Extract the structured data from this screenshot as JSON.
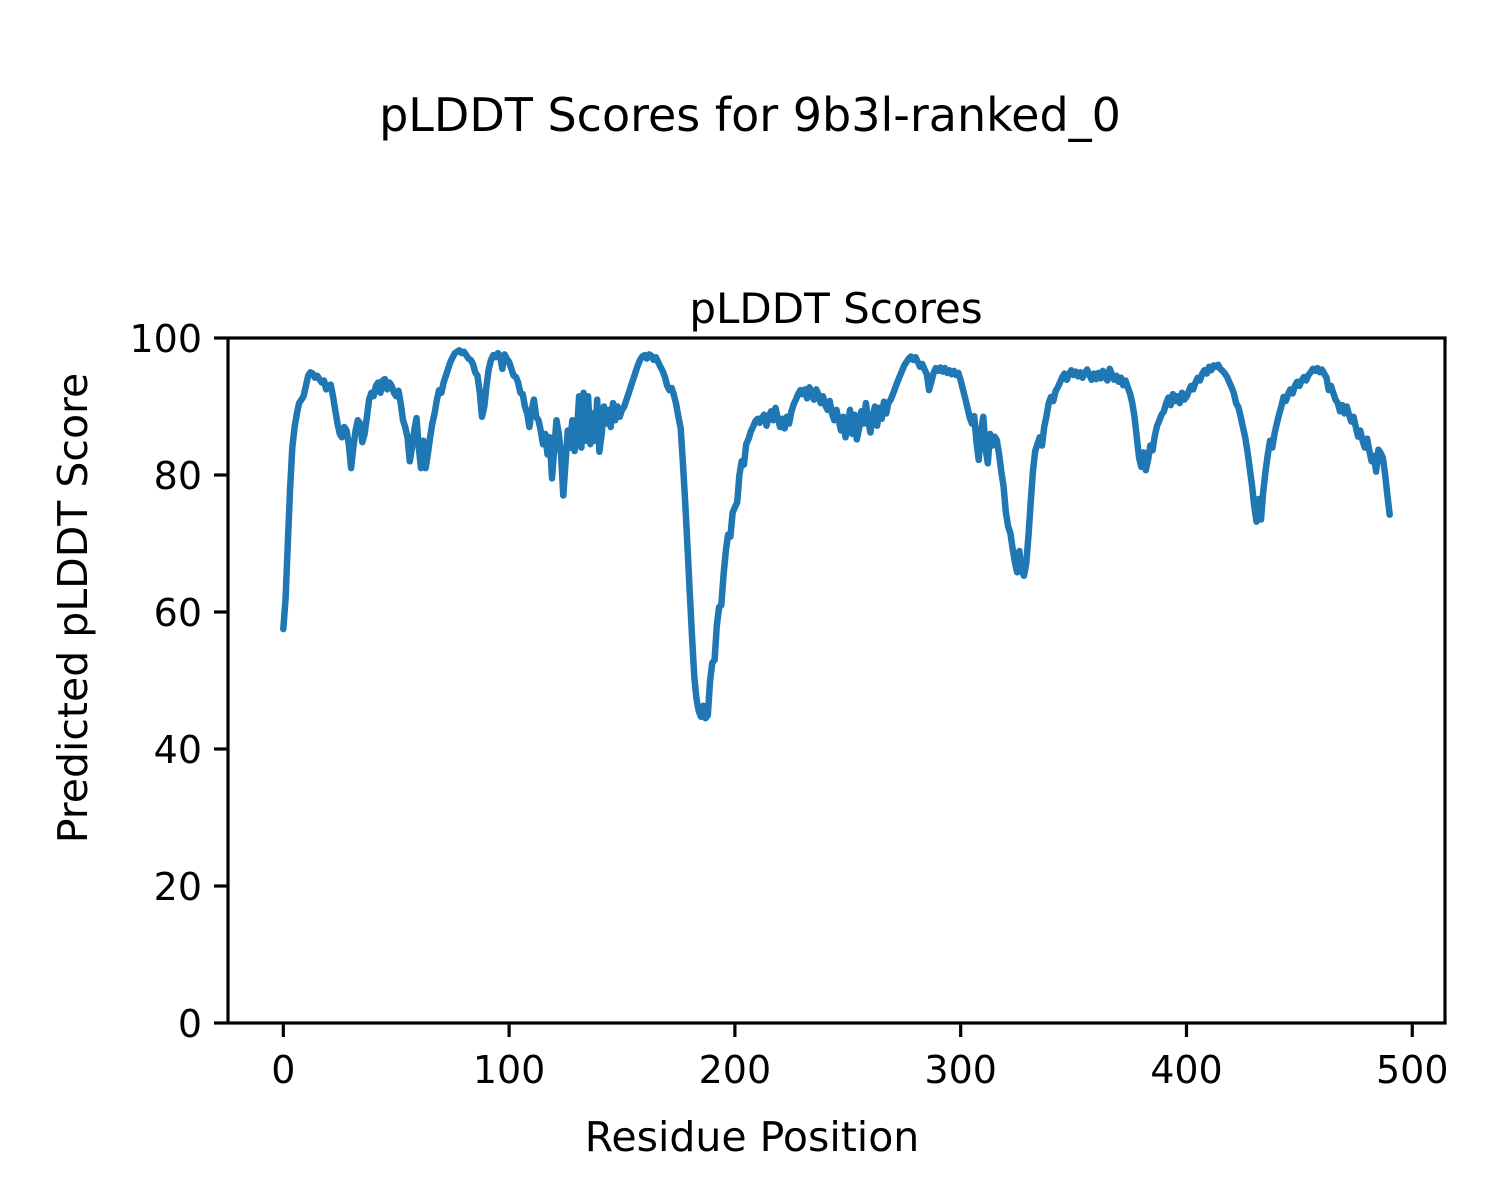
{
  "figure": {
    "suptitle": "pLDDT Scores for 9b3l-ranked_0",
    "background": "#ffffff"
  },
  "axes": {
    "title": "pLDDT Scores",
    "xlabel": "Residue Position",
    "ylabel": "Predicted pLDDT Score"
  },
  "colors": {
    "line": "#1f77b4",
    "axis": "#000000",
    "text": "#000000"
  },
  "chart_data": {
    "type": "line",
    "title": "pLDDT Scores",
    "xlabel": "Residue Position",
    "ylabel": "Predicted pLDDT Score",
    "xlim": [
      -24.5,
      514.5
    ],
    "ylim": [
      0,
      100
    ],
    "x_ticks": [
      0,
      100,
      200,
      300,
      400,
      500
    ],
    "y_ticks": [
      0,
      20,
      40,
      60,
      80,
      100
    ],
    "grid": false,
    "legend": null,
    "series": [
      {
        "name": "pLDDT",
        "x_start": 0,
        "x_step": 1,
        "values": [
          57.5,
          62,
          70,
          78,
          84,
          87,
          89,
          90.5,
          91,
          91.5,
          93,
          94.5,
          95,
          94.8,
          94.2,
          94.5,
          94,
          93.5,
          93.8,
          92.5,
          93,
          93.2,
          91.5,
          89.5,
          87.5,
          86,
          85.5,
          87,
          86.5,
          84.5,
          81,
          84,
          86.5,
          88,
          87.5,
          84.8,
          86,
          88.5,
          91,
          92,
          91.5,
          93,
          93.5,
          92,
          93.8,
          94,
          92.5,
          93.5,
          93,
          92,
          91.5,
          92.3,
          90.5,
          88,
          87,
          85.5,
          82,
          84,
          86.5,
          88.3,
          84,
          81,
          85,
          81,
          83,
          85.5,
          87.5,
          89,
          91,
          92.4,
          92,
          93.5,
          94.5,
          95.5,
          96.5,
          97.2,
          97.8,
          98,
          98.2,
          97.8,
          98,
          97.5,
          97,
          96.8,
          96.2,
          95,
          94.5,
          92,
          88.5,
          90,
          93,
          95.5,
          96.8,
          97.5,
          97.2,
          97.8,
          97.4,
          95.5,
          97.6,
          97,
          96.5,
          95.5,
          94.5,
          94.3,
          93.5,
          92,
          91.8,
          90,
          89,
          87,
          89.5,
          91,
          88.5,
          88,
          86.5,
          84.5,
          86,
          83,
          85.5,
          79.5,
          84,
          88,
          86,
          83,
          77,
          82,
          86.5,
          84,
          88,
          83.5,
          86,
          91.5,
          84,
          92,
          85,
          91.5,
          84.5,
          89,
          85,
          91,
          83.4,
          86,
          90,
          87.5,
          89.5,
          87,
          90.5,
          88,
          90,
          88.5,
          89.5,
          90,
          91,
          92,
          93,
          94,
          95,
          96,
          96.8,
          97.3,
          97.5,
          97,
          97.6,
          97.4,
          96.8,
          97.2,
          96.5,
          95.8,
          95.2,
          94.3,
          93,
          92.4,
          92.7,
          91.7,
          90.3,
          88.5,
          86.8,
          81.5,
          76,
          69.5,
          63,
          56.5,
          50.5,
          47.3,
          45.5,
          44.7,
          46.3,
          44.5,
          44.9,
          50,
          52.6,
          53,
          58,
          60.7,
          61,
          65.5,
          69,
          71.3,
          71,
          74.5,
          75.3,
          76,
          80,
          82,
          81.5,
          84.5,
          85.2,
          86.3,
          87,
          87.8,
          88.2,
          87.6,
          88.4,
          88.8,
          87.2,
          88.5,
          89.3,
          88,
          89.8,
          88.3,
          87,
          88.2,
          86.8,
          88.5,
          87.5,
          89.2,
          90.3,
          91,
          91.8,
          92.4,
          91.8,
          92.5,
          91.2,
          92.8,
          92,
          91,
          92.5,
          91.8,
          90.5,
          91.5,
          90.2,
          89.5,
          90.8,
          89,
          88,
          89.5,
          87.9,
          86.5,
          88.5,
          85.5,
          87,
          89.5,
          86,
          88.8,
          85.2,
          86.8,
          89.3,
          87.5,
          90.5,
          88,
          86.2,
          88.5,
          90,
          87.2,
          89.8,
          88.2,
          90.7,
          89,
          90.5,
          91,
          91.8,
          92.7,
          93.6,
          94.4,
          95.2,
          96,
          96.5,
          97,
          97.3,
          96.8,
          97.2,
          96.5,
          95.8,
          96.2,
          95.4,
          94.7,
          92.4,
          93.6,
          94.9,
          95.6,
          95.2,
          95.7,
          95.1,
          95.6,
          94.9,
          95.3,
          94.7,
          95.2,
          94.6,
          94.9,
          93.8,
          92.5,
          91.2,
          89.8,
          88.4,
          87.5,
          88.6,
          84.8,
          82.2,
          86.3,
          88.5,
          84,
          81.7,
          86,
          84.3,
          85.6,
          85.1,
          83,
          80.5,
          78.3,
          74.6,
          72.5,
          71.5,
          69.3,
          67.3,
          65.8,
          68.9,
          66,
          65.3,
          67,
          71,
          76,
          80.5,
          83.5,
          84.5,
          85.5,
          84.3,
          87,
          88.6,
          90.5,
          91.4,
          90.8,
          92.2,
          92.8,
          93.5,
          94.3,
          94.8,
          93.9,
          94.7,
          95.3,
          94.6,
          95.1,
          94.4,
          95,
          94.2,
          94.9,
          95.4,
          94.6,
          93.9,
          94.8,
          94,
          94.9,
          94.1,
          95.2,
          94.3,
          93.8,
          95.5,
          94.7,
          93.9,
          94.5,
          93.6,
          94.2,
          93.1,
          93.8,
          92.8,
          91.9,
          90.5,
          88.5,
          85.5,
          82.5,
          81.2,
          83.3,
          80.7,
          82.2,
          84.3,
          83.6,
          85.8,
          87.2,
          88,
          88.8,
          89.3,
          90.5,
          91.3,
          90.2,
          91.8,
          90.8,
          91.5,
          90.5,
          92,
          91,
          91.4,
          92.2,
          93,
          92.5,
          93.5,
          94.2,
          93.8,
          94.8,
          95.3,
          94.8,
          95.8,
          95.3,
          96,
          95.8,
          96.1,
          95.5,
          95.2,
          94.8,
          94.3,
          93.5,
          92.8,
          91.9,
          90.5,
          89.9,
          88.5,
          87,
          85.5,
          83.5,
          81,
          78.5,
          75.5,
          73.2,
          76.5,
          73.5,
          77.5,
          80.5,
          83,
          85,
          84,
          86,
          87.5,
          88.8,
          90,
          91.4,
          90.8,
          91.8,
          92.5,
          91.9,
          93,
          93.6,
          93,
          93.8,
          94.3,
          93.8,
          94.6,
          95,
          95.5,
          95.2,
          95.6,
          95,
          95.4,
          94.8,
          94.2,
          92.4,
          93,
          92,
          91,
          90.5,
          89.3,
          90.2,
          89,
          90,
          88.8,
          87.8,
          88.5,
          87,
          85.6,
          86.5,
          85,
          84,
          85.3,
          83.5,
          82,
          82.8,
          80.5,
          83.7,
          83.2,
          82.5,
          80,
          77,
          74.2
        ]
      }
    ]
  }
}
